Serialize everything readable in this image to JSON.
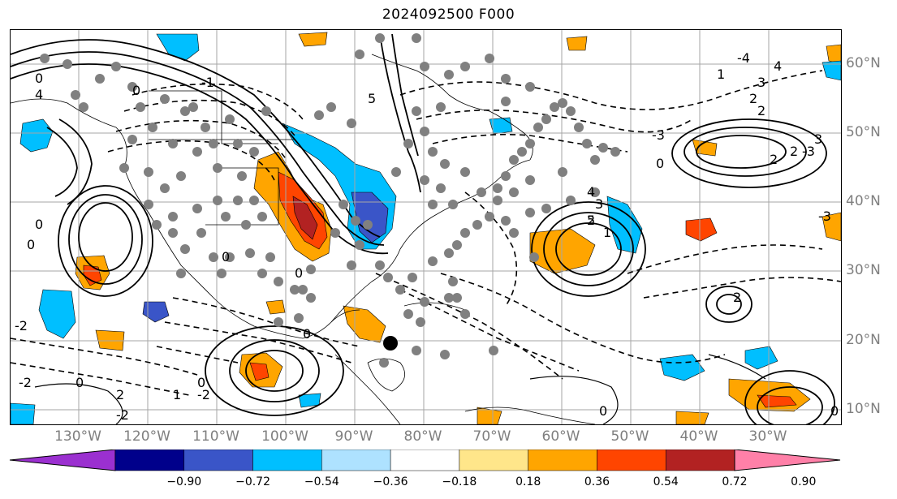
{
  "title": "2024092500 F000",
  "lon_labels": [
    "130°W",
    "120°W",
    "110°W",
    "100°W",
    "90°W",
    "80°W",
    "70°W",
    "60°W",
    "50°W",
    "40°W",
    "30°W"
  ],
  "lat_labels": [
    "60°N",
    "50°N",
    "40°N",
    "30°N",
    "20°N",
    "10°N"
  ],
  "colorbar": {
    "ticks": [
      "−0.90",
      "−0.72",
      "−0.54",
      "−0.36",
      "−0.18",
      "0.18",
      "0.36",
      "0.54",
      "0.72",
      "0.90"
    ],
    "colors": [
      "#9b30d0",
      "#00008b",
      "#3a55c8",
      "#00bfff",
      "#aee2ff",
      "#ffffff",
      "#ffe68a",
      "#ffa500",
      "#ff4500",
      "#b22222",
      "#ff80a8"
    ]
  },
  "contour_labels": [
    "5",
    "4",
    "3",
    "2",
    "2",
    "1",
    "0",
    "0",
    "0",
    "-1",
    "-2",
    "-2",
    "-3",
    "-4",
    "4",
    "3",
    "2",
    "1",
    "0",
    "5",
    "4",
    "3",
    "2",
    "2",
    "-2",
    "-3",
    "-3",
    "0",
    "2",
    "0",
    "0",
    "1",
    "0",
    "-2",
    "0",
    "2",
    "0",
    "0",
    "0"
  ],
  "colors": {
    "positive": "#ffa500",
    "strong_positive": "#ff4500",
    "negative": "#00bfff",
    "strong_negative": "#3a55c8",
    "marker": "#808080",
    "grid": "#a6a6a6",
    "axis_label": "#7f7f7f"
  }
}
